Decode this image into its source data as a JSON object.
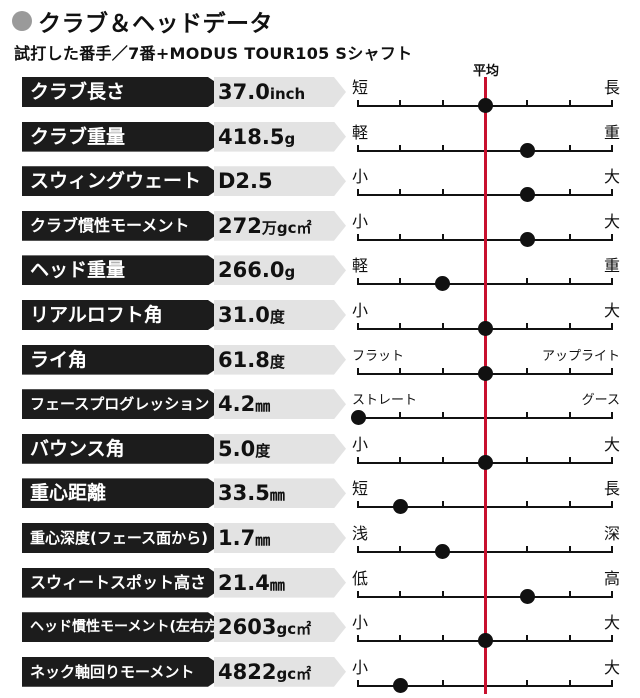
{
  "header": {
    "title": "クラブ＆ヘッドデータ",
    "subtitle": "試打した番手／7番+MODUS TOUR105 Sシャフト",
    "average_label": "平均"
  },
  "rows": [
    {
      "label": "クラブ長さ",
      "value": "37.0",
      "unit": "inch",
      "left": "短",
      "right": "長",
      "position": 0.5
    },
    {
      "label": "クラブ重量",
      "value": "418.5",
      "unit": "g",
      "left": "軽",
      "right": "重",
      "position": 0.667
    },
    {
      "label": "スウィングウェート",
      "value": "D2.5",
      "unit": "",
      "left": "小",
      "right": "大",
      "position": 0.667
    },
    {
      "label": "クラブ慣性モーメント",
      "value": "272",
      "unit": "万gc㎡",
      "left": "小",
      "right": "大",
      "position": 0.667
    },
    {
      "label": "ヘッド重量",
      "value": "266.0",
      "unit": "g",
      "left": "軽",
      "right": "重",
      "position": 0.333
    },
    {
      "label": "リアルロフト角",
      "value": "31.0",
      "unit": "度",
      "left": "小",
      "right": "大",
      "position": 0.5
    },
    {
      "label": "ライ角",
      "value": "61.8",
      "unit": "度",
      "left": "フラット",
      "right": "アップライト",
      "position": 0.5
    },
    {
      "label": "フェースプログレッション",
      "value": "4.2",
      "unit": "㎜",
      "left": "ストレート",
      "right": "グース",
      "position": 0.0
    },
    {
      "label": "バウンス角",
      "value": "5.0",
      "unit": "度",
      "left": "小",
      "right": "大",
      "position": 0.5
    },
    {
      "label": "重心距離",
      "value": "33.5",
      "unit": "㎜",
      "left": "短",
      "right": "長",
      "position": 0.167
    },
    {
      "label": "重心深度(フェース面から)",
      "value": "1.7",
      "unit": "㎜",
      "left": "浅",
      "right": "深",
      "position": 0.333
    },
    {
      "label": "スウィートスポット高さ",
      "value": "21.4",
      "unit": "㎜",
      "left": "低",
      "right": "高",
      "position": 0.667
    },
    {
      "label": "ヘッド慣性モーメント(左右方向)",
      "value": "2603",
      "unit": "gc㎡",
      "left": "小",
      "right": "大",
      "position": 0.5
    },
    {
      "label": "ネック軸回りモーメント",
      "value": "4822",
      "unit": "gc㎡",
      "left": "小",
      "right": "大",
      "position": 0.167
    }
  ]
}
